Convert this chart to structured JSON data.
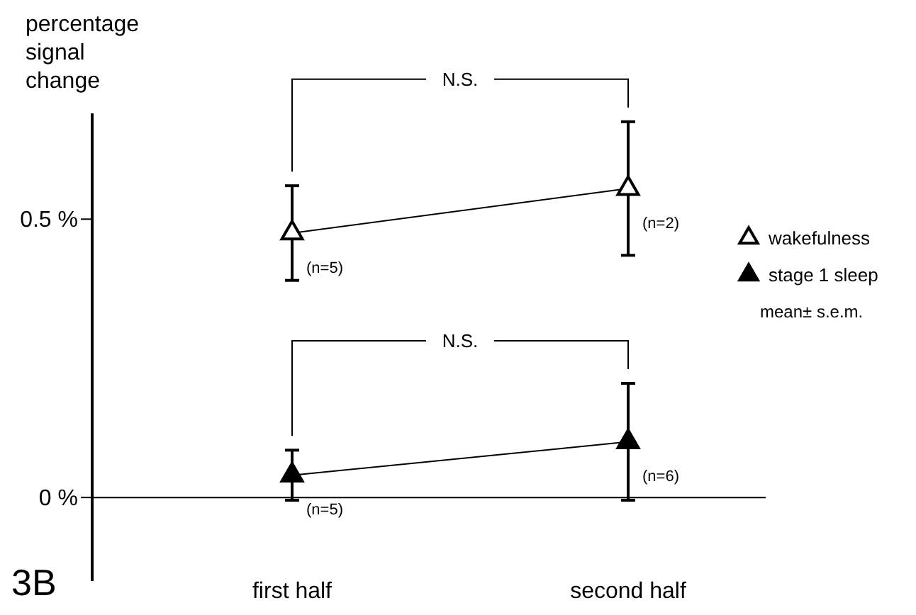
{
  "chart_data": {
    "type": "line",
    "title": "3B",
    "ylabel": "percentage signal change",
    "categories": [
      "first half",
      "second half"
    ],
    "series": [
      {
        "name": "wakefulness",
        "color": "#ffffff",
        "values": [
          0.475,
          0.555
        ],
        "errors": [
          0.085,
          0.12
        ]
      },
      {
        "name": "stage 1 sleep",
        "color": "#000000",
        "values": [
          0.04,
          0.1
        ],
        "errors": [
          0.045,
          0.105
        ]
      }
    ],
    "ylim": [
      -0.15,
      0.69
    ],
    "yticks": [
      {
        "value": 0.5,
        "label": "0.5 %"
      },
      {
        "value": 0,
        "label": "0 %"
      }
    ],
    "ref_lines": [
      {
        "axis": "y",
        "value": 0
      }
    ],
    "annotations": [
      "N.S.",
      "N.S.",
      "(n=5)",
      "(n=2)",
      "(n=5)",
      "(n=6)",
      "mean± s.e.m."
    ],
    "legend": "right",
    "marker": "triangle",
    "line_style": "solid",
    "grid": false
  }
}
